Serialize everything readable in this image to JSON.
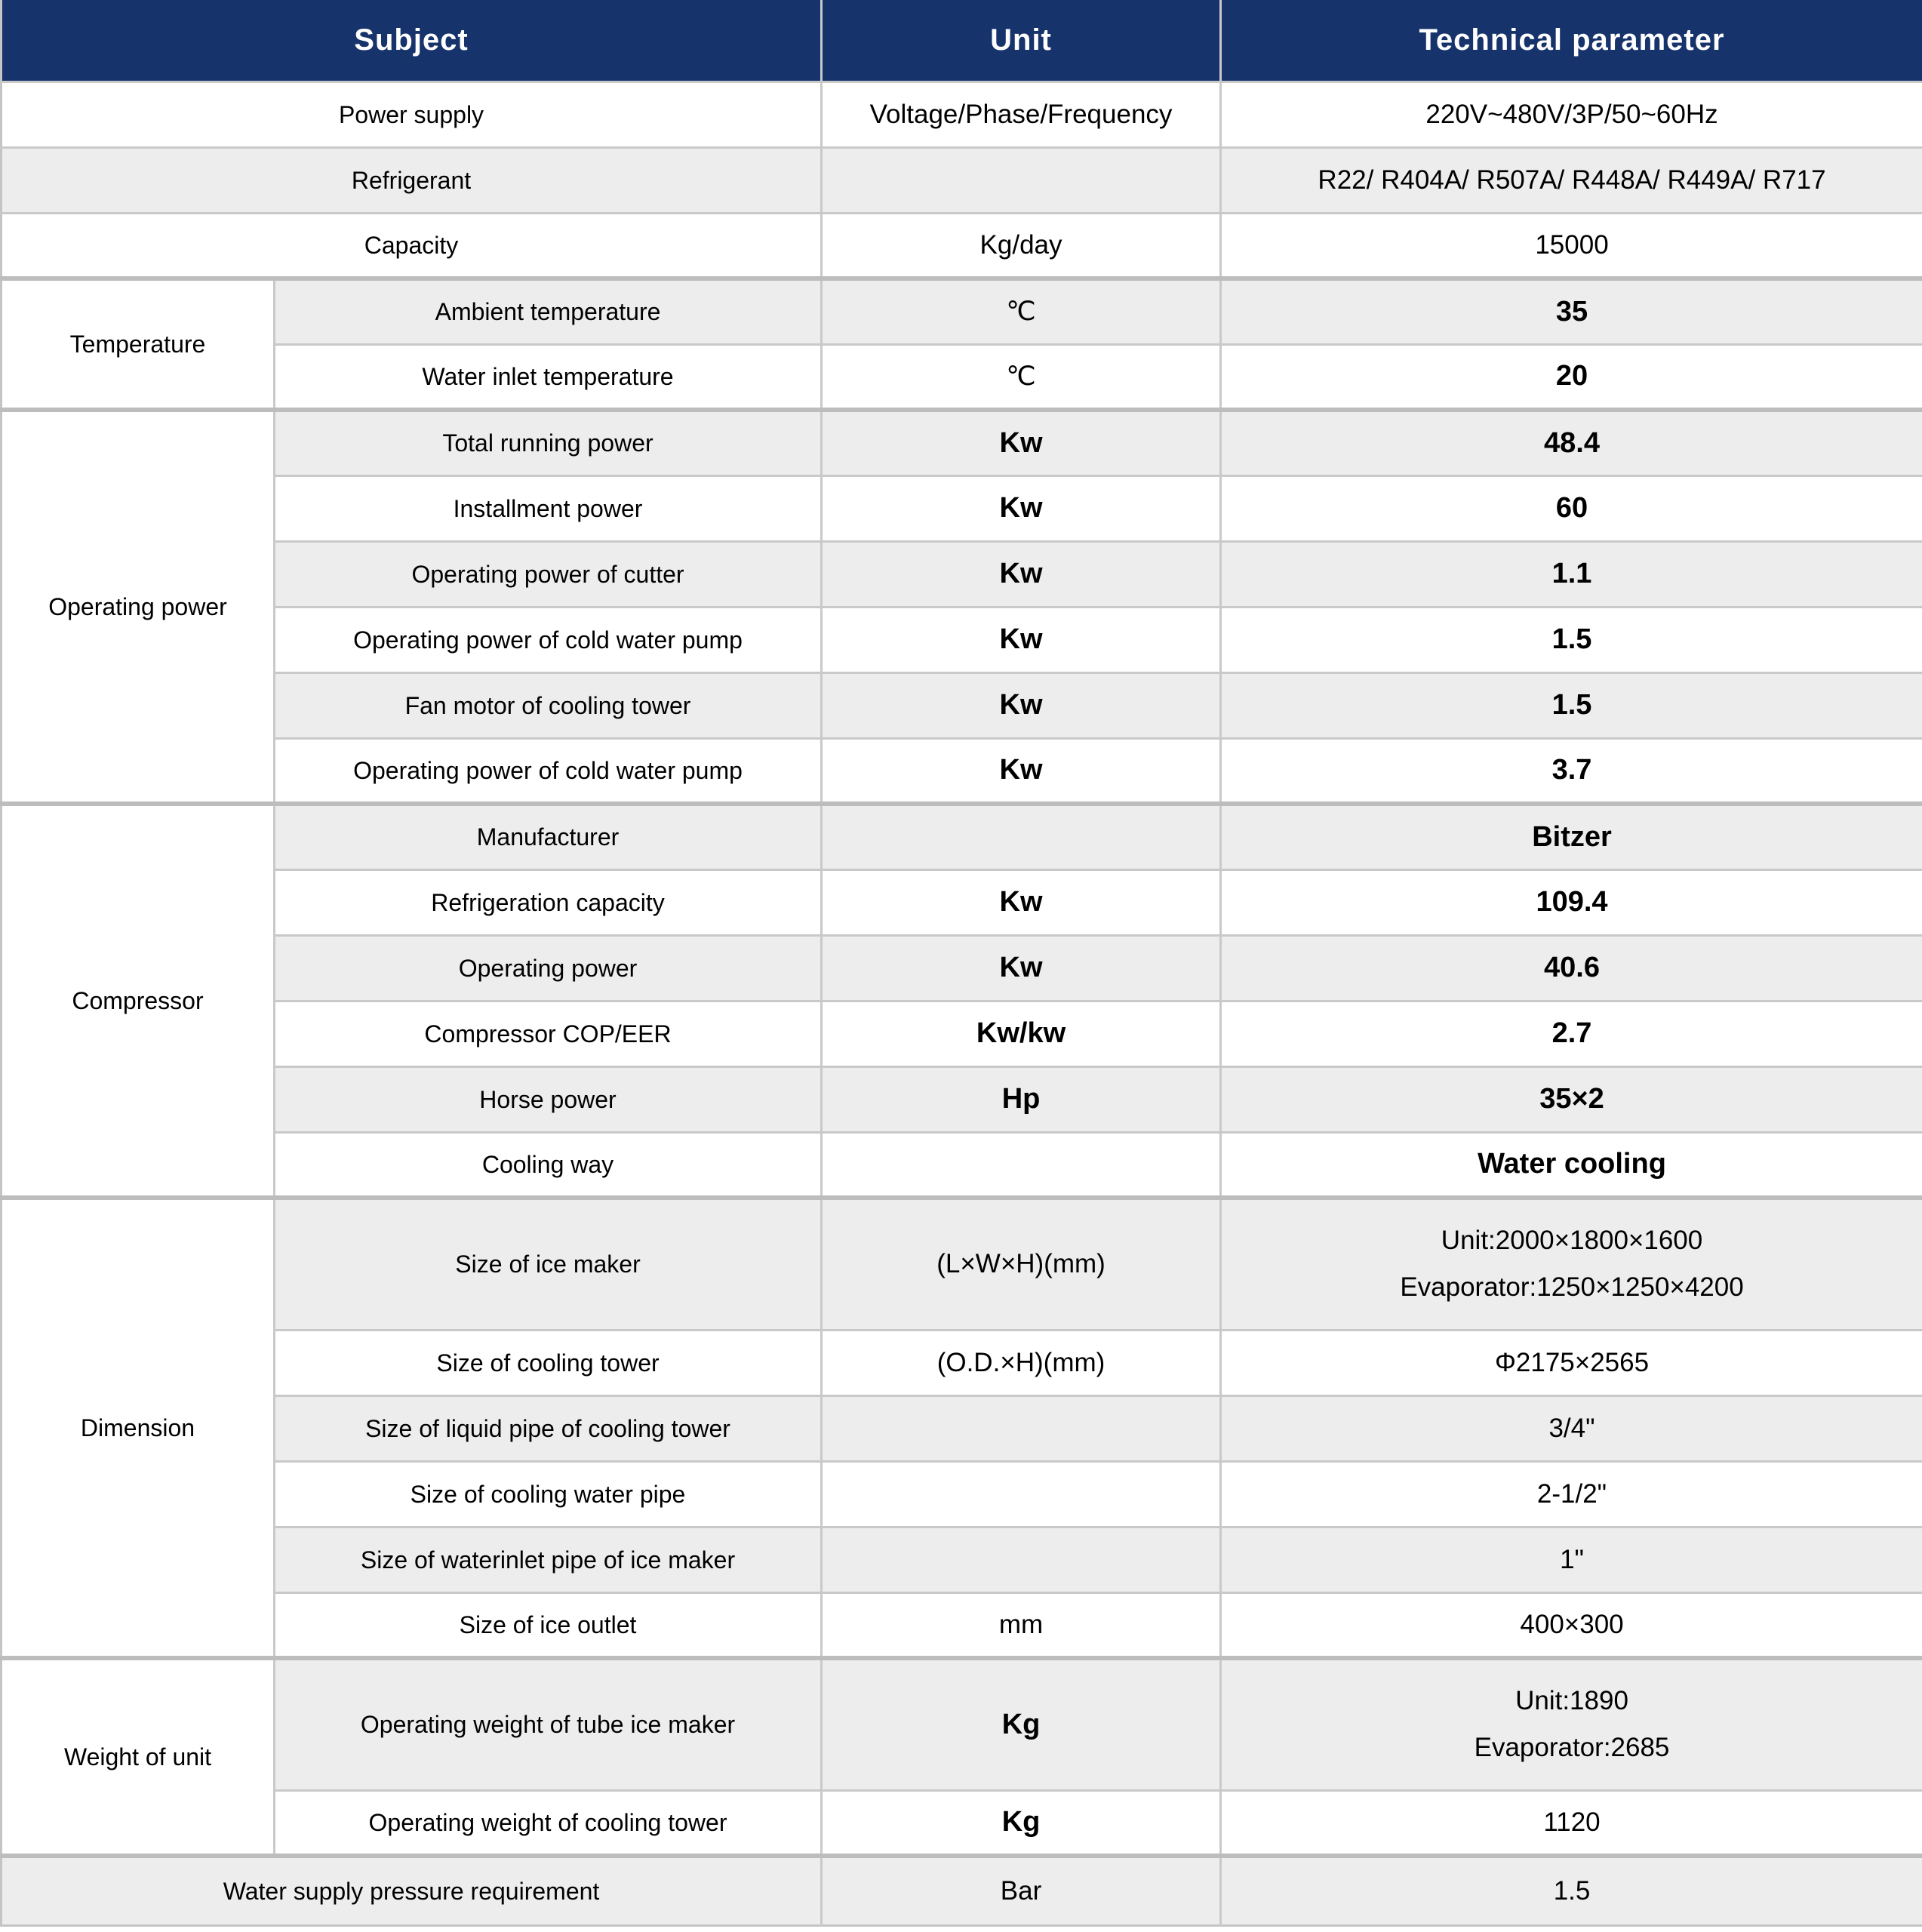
{
  "header": {
    "subject": "Subject",
    "unit": "Unit",
    "parameter": "Technical parameter"
  },
  "colors": {
    "header_bg": "#17336b",
    "header_text": "#ffffff",
    "shaded_row_bg": "#ededed",
    "row_bg": "#ffffff",
    "row_border": "#c9c9c9",
    "section_border": "#bdbdbd",
    "text": "#000000"
  },
  "rows": [
    {
      "subject": "Power supply",
      "full_width": true,
      "unit": "Voltage/Phase/Frequency",
      "unit_bold": false,
      "value": "220V~480V/3P/50~60Hz",
      "value_bold": false,
      "shaded": false,
      "section": false,
      "tall": false
    },
    {
      "subject": "Refrigerant",
      "full_width": true,
      "unit": "",
      "unit_bold": false,
      "value": "R22/ R404A/ R507A/ R448A/ R449A/ R717",
      "value_bold": false,
      "shaded": true,
      "section": false,
      "tall": false
    },
    {
      "subject": "Capacity",
      "full_width": true,
      "unit": "Kg/day",
      "unit_bold": false,
      "value": "15000",
      "value_bold": false,
      "shaded": false,
      "section": false,
      "tall": false
    },
    {
      "group": {
        "label": "Temperature",
        "rowspan": 2
      },
      "subject": "Ambient temperature",
      "full_width": false,
      "unit": "℃",
      "unit_bold": false,
      "value": "35",
      "value_bold": true,
      "shaded": true,
      "section": true,
      "tall": false
    },
    {
      "subject": "Water inlet temperature",
      "full_width": false,
      "unit": "℃",
      "unit_bold": false,
      "value": "20",
      "value_bold": true,
      "shaded": false,
      "section": false,
      "tall": false
    },
    {
      "group": {
        "label": "Operating power",
        "rowspan": 6
      },
      "subject": "Total running power",
      "full_width": false,
      "unit": "Kw",
      "unit_bold": true,
      "value": "48.4",
      "value_bold": true,
      "shaded": true,
      "section": true,
      "tall": false
    },
    {
      "subject": "Installment power",
      "full_width": false,
      "unit": "Kw",
      "unit_bold": true,
      "value": "60",
      "value_bold": true,
      "shaded": false,
      "section": false,
      "tall": false
    },
    {
      "subject": "Operating power of cutter",
      "full_width": false,
      "unit": "Kw",
      "unit_bold": true,
      "value": "1.1",
      "value_bold": true,
      "shaded": true,
      "section": false,
      "tall": false
    },
    {
      "subject": "Operating power of cold water pump",
      "full_width": false,
      "unit": "Kw",
      "unit_bold": true,
      "value": "1.5",
      "value_bold": true,
      "shaded": false,
      "section": false,
      "tall": false
    },
    {
      "subject": "Fan motor of cooling tower",
      "full_width": false,
      "unit": "Kw",
      "unit_bold": true,
      "value": "1.5",
      "value_bold": true,
      "shaded": true,
      "section": false,
      "tall": false
    },
    {
      "subject": "Operating power of cold water pump",
      "full_width": false,
      "unit": "Kw",
      "unit_bold": true,
      "value": "3.7",
      "value_bold": true,
      "shaded": false,
      "section": false,
      "tall": false
    },
    {
      "group": {
        "label": "Compressor",
        "rowspan": 6
      },
      "subject": "Manufacturer",
      "full_width": false,
      "unit": "",
      "unit_bold": false,
      "value": "Bitzer",
      "value_bold": true,
      "shaded": true,
      "section": true,
      "tall": false
    },
    {
      "subject": "Refrigeration capacity",
      "full_width": false,
      "unit": "Kw",
      "unit_bold": true,
      "value": "109.4",
      "value_bold": true,
      "shaded": false,
      "section": false,
      "tall": false
    },
    {
      "subject": "Operating power",
      "full_width": false,
      "unit": "Kw",
      "unit_bold": true,
      "value": "40.6",
      "value_bold": true,
      "shaded": true,
      "section": false,
      "tall": false
    },
    {
      "subject": "Compressor COP/EER",
      "full_width": false,
      "unit": "Kw/kw",
      "unit_bold": true,
      "value": "2.7",
      "value_bold": true,
      "shaded": false,
      "section": false,
      "tall": false
    },
    {
      "subject": "Horse power",
      "full_width": false,
      "unit": "Hp",
      "unit_bold": true,
      "value": "35×2",
      "value_bold": true,
      "shaded": true,
      "section": false,
      "tall": false
    },
    {
      "subject": "Cooling way",
      "full_width": false,
      "unit": "",
      "unit_bold": false,
      "value": "Water cooling",
      "value_bold": true,
      "shaded": false,
      "section": false,
      "tall": false
    },
    {
      "group": {
        "label": "Dimension",
        "rowspan": 6
      },
      "subject": "Size of ice maker",
      "full_width": false,
      "unit": "(L×W×H)(mm)",
      "unit_bold": false,
      "value": [
        "Unit:2000×1800×1600",
        "Evaporator:1250×1250×4200"
      ],
      "value_bold": false,
      "shaded": true,
      "section": true,
      "tall": true
    },
    {
      "subject": "Size of cooling tower",
      "full_width": false,
      "unit": "(O.D.×H)(mm)",
      "unit_bold": false,
      "value": "Φ2175×2565",
      "value_bold": false,
      "shaded": false,
      "section": false,
      "tall": false
    },
    {
      "subject": "Size of liquid pipe of cooling tower",
      "full_width": false,
      "unit": "",
      "unit_bold": false,
      "value": "3/4\"",
      "value_bold": false,
      "shaded": true,
      "section": false,
      "tall": false
    },
    {
      "subject": "Size of cooling water pipe",
      "full_width": false,
      "unit": "",
      "unit_bold": false,
      "value": "2-1/2\"",
      "value_bold": false,
      "shaded": false,
      "section": false,
      "tall": false
    },
    {
      "subject": "Size of waterinlet pipe of ice maker",
      "full_width": false,
      "unit": "",
      "unit_bold": false,
      "value": "1\"",
      "value_bold": false,
      "shaded": true,
      "section": false,
      "tall": false
    },
    {
      "subject": "Size of ice outlet",
      "full_width": false,
      "unit": "mm",
      "unit_bold": false,
      "value": "400×300",
      "value_bold": false,
      "shaded": false,
      "section": false,
      "tall": false
    },
    {
      "group": {
        "label": "Weight of unit",
        "rowspan": 2
      },
      "subject": "Operating weight of tube ice maker",
      "full_width": false,
      "unit": "Kg",
      "unit_bold": true,
      "value": [
        "Unit:1890",
        "Evaporator:2685"
      ],
      "value_bold": false,
      "shaded": true,
      "section": true,
      "tall": true
    },
    {
      "subject": "Operating weight of cooling tower",
      "full_width": false,
      "unit": "Kg",
      "unit_bold": true,
      "value": "1120",
      "value_bold": false,
      "shaded": false,
      "section": false,
      "tall": false
    },
    {
      "subject": "Water supply pressure requirement",
      "full_width": true,
      "unit": "Bar",
      "unit_bold": false,
      "value": "1.5",
      "value_bold": false,
      "shaded": true,
      "section": true,
      "tall": false,
      "last": true
    }
  ]
}
